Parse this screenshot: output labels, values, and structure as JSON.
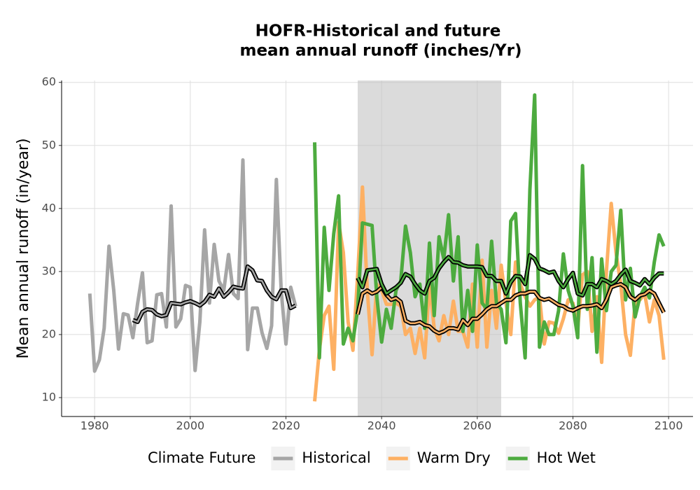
{
  "chart_data": {
    "type": "line",
    "title": [
      "HOFR-Historical and future",
      "mean annual runoff (inches/Yr)"
    ],
    "y_label": "Mean annual runoff (in/year)",
    "legend_title": "Climate Future",
    "xlim": [
      1973.1,
      2105.1
    ],
    "ylim": [
      7,
      60.3
    ],
    "xticks": [
      1980,
      2000,
      2020,
      2040,
      2060,
      2080,
      2100
    ],
    "yticks": [
      10,
      20,
      30,
      40,
      50,
      60
    ],
    "grid": true,
    "shade": [
      2035,
      2065
    ],
    "series": [
      {
        "name": "Historical",
        "color": "#a6a6a6",
        "x": [
          1979,
          1980,
          1981,
          1982,
          1983,
          1984,
          1985,
          1986,
          1987,
          1988,
          1989,
          1990,
          1991,
          1992,
          1993,
          1994,
          1995,
          1996,
          1997,
          1998,
          1999,
          2000,
          2001,
          2002,
          2003,
          2004,
          2005,
          2006,
          2007,
          2008,
          2009,
          2010,
          2011,
          2012,
          2013,
          2014,
          2015,
          2016,
          2017,
          2018,
          2019,
          2020,
          2021,
          2022
        ],
        "values": [
          26.5,
          14.2,
          16,
          21,
          34,
          27,
          17.7,
          23.3,
          23.1,
          19.5,
          25,
          29.8,
          18.7,
          19,
          26.3,
          26.5,
          21.2,
          40.4,
          21.2,
          22.5,
          27.8,
          27.5,
          14.3,
          22,
          36.6,
          25,
          34.3,
          28.5,
          27,
          32.7,
          26.5,
          25.7,
          47.7,
          17.6,
          24.2,
          24.2,
          20.3,
          17.8,
          21.4,
          44.6,
          27,
          18.5,
          27.5,
          24.5
        ],
        "smooth_x": [
          1988,
          1989,
          1990,
          1991,
          1992,
          1993,
          1994,
          1995,
          1996,
          1997,
          1998,
          1999,
          2000,
          2001,
          2002,
          2003,
          2004,
          2005,
          2006,
          2007,
          2008,
          2009,
          2010,
          2011,
          2012,
          2013,
          2014,
          2015,
          2016,
          2017,
          2018,
          2019,
          2020,
          2021,
          2022
        ],
        "smooth_values": [
          22.3,
          22,
          23.6,
          24,
          23.9,
          23.2,
          22.9,
          23.1,
          25,
          24.9,
          24.8,
          25.1,
          25.3,
          25,
          24.6,
          25.2,
          26.3,
          26,
          27.3,
          26,
          26.7,
          27.6,
          27.4,
          27.3,
          30.8,
          30.2,
          28.6,
          28.5,
          27,
          26,
          25.6,
          27,
          27,
          24.2,
          24.6
        ]
      },
      {
        "name": "Warm Dry",
        "color": "#fdb063",
        "x": [
          2026,
          2027,
          2028,
          2029,
          2030,
          2031,
          2032,
          2033,
          2034,
          2035,
          2036,
          2037,
          2038,
          2039,
          2040,
          2041,
          2042,
          2043,
          2044,
          2045,
          2046,
          2047,
          2048,
          2049,
          2050,
          2051,
          2052,
          2053,
          2054,
          2055,
          2056,
          2057,
          2058,
          2059,
          2060,
          2061,
          2062,
          2063,
          2064,
          2065,
          2066,
          2067,
          2068,
          2069,
          2070,
          2071,
          2072,
          2073,
          2074,
          2075,
          2076,
          2077,
          2078,
          2079,
          2080,
          2081,
          2082,
          2083,
          2084,
          2085,
          2086,
          2087,
          2088,
          2089,
          2090,
          2091,
          2092,
          2093,
          2094,
          2095,
          2096,
          2097,
          2098,
          2099
        ],
        "values": [
          9.4,
          17.6,
          23,
          24.5,
          14.5,
          37.8,
          33,
          22,
          17.5,
          29.5,
          43.4,
          27,
          16.8,
          28,
          27,
          24.8,
          24.8,
          25,
          24.5,
          20,
          21,
          17,
          21,
          16.3,
          28,
          21,
          19,
          23,
          20,
          25.3,
          20.5,
          20.5,
          18,
          28,
          18,
          31.8,
          18,
          27,
          21,
          31,
          25,
          20,
          31.5,
          28,
          26,
          24.5,
          25.5,
          26,
          18.5,
          22,
          21.8,
          20.2,
          22.5,
          25.5,
          25,
          21,
          29.5,
          30,
          20.5,
          26,
          15.6,
          30,
          40.8,
          33,
          28,
          20,
          16.7,
          25,
          25.5,
          26.5,
          22,
          25.5,
          23,
          16
        ],
        "smooth_x": [
          2035,
          2036,
          2037,
          2038,
          2039,
          2040,
          2041,
          2042,
          2043,
          2044,
          2045,
          2046,
          2047,
          2048,
          2049,
          2050,
          2051,
          2052,
          2053,
          2054,
          2055,
          2056,
          2057,
          2058,
          2059,
          2060,
          2061,
          2062,
          2063,
          2064,
          2065,
          2066,
          2067,
          2068,
          2069,
          2070,
          2071,
          2072,
          2073,
          2074,
          2075,
          2076,
          2077,
          2078,
          2079,
          2080,
          2081,
          2082,
          2083,
          2084,
          2085,
          2086,
          2087,
          2088,
          2089,
          2090,
          2091,
          2092,
          2093,
          2094,
          2095,
          2096,
          2097,
          2098,
          2099
        ],
        "smooth_values": [
          23.2,
          26.5,
          27,
          26.5,
          26.8,
          27.5,
          26.3,
          25.5,
          25.8,
          25.2,
          22.2,
          21.8,
          21.8,
          22,
          21.5,
          21.3,
          20.6,
          20.2,
          20.5,
          21,
          21,
          20.8,
          22.3,
          21.5,
          22.5,
          22.5,
          23.2,
          24,
          24.5,
          24.5,
          25,
          25.5,
          25.5,
          26.2,
          26.5,
          26.5,
          26.8,
          26.8,
          25.8,
          25.5,
          25.7,
          25.2,
          24.7,
          24.5,
          24,
          23.8,
          24.2,
          24.5,
          24.5,
          24.6,
          24.8,
          24.2,
          25.5,
          27.5,
          27.8,
          28,
          27.5,
          26,
          25.5,
          26.2,
          26.4,
          27,
          26.5,
          25,
          23.5
        ]
      },
      {
        "name": "Hot Wet",
        "color": "#4dab3f",
        "x": [
          2026,
          2027,
          2028,
          2029,
          2030,
          2031,
          2032,
          2033,
          2034,
          2035,
          2036,
          2037,
          2038,
          2039,
          2040,
          2041,
          2042,
          2043,
          2044,
          2045,
          2046,
          2047,
          2048,
          2049,
          2050,
          2051,
          2052,
          2053,
          2054,
          2055,
          2056,
          2057,
          2058,
          2059,
          2060,
          2061,
          2062,
          2063,
          2064,
          2065,
          2066,
          2067,
          2068,
          2069,
          2070,
          2071,
          2072,
          2073,
          2074,
          2075,
          2076,
          2077,
          2078,
          2079,
          2080,
          2081,
          2082,
          2083,
          2084,
          2085,
          2086,
          2087,
          2088,
          2089,
          2090,
          2091,
          2092,
          2093,
          2094,
          2095,
          2096,
          2097,
          2098,
          2099
        ],
        "values": [
          50.5,
          16.3,
          37,
          27,
          36,
          42,
          18.5,
          21,
          19,
          24,
          37.7,
          37.5,
          37.3,
          26,
          18.8,
          24,
          21,
          27,
          28.5,
          37.2,
          33,
          26,
          28,
          21,
          34.5,
          23,
          35.5,
          32,
          39,
          28.5,
          35.5,
          20.5,
          27,
          20.5,
          34.2,
          25,
          24,
          34.8,
          25,
          24,
          18.7,
          38,
          39.2,
          25,
          16.3,
          43,
          58,
          18,
          22,
          20,
          20,
          23.8,
          32.8,
          27,
          24.5,
          19.5,
          46.8,
          24,
          32.2,
          17.2,
          32,
          23.8,
          30,
          31,
          39.7,
          25.5,
          30.5,
          22.8,
          26,
          27.5,
          25.8,
          31.5,
          35.8,
          34
        ],
        "smooth_x": [
          2035,
          2036,
          2037,
          2038,
          2039,
          2040,
          2041,
          2042,
          2043,
          2044,
          2045,
          2046,
          2047,
          2048,
          2049,
          2050,
          2051,
          2052,
          2053,
          2054,
          2055,
          2056,
          2057,
          2058,
          2059,
          2060,
          2061,
          2062,
          2063,
          2064,
          2065,
          2066,
          2067,
          2068,
          2069,
          2070,
          2071,
          2072,
          2073,
          2074,
          2075,
          2076,
          2077,
          2078,
          2079,
          2080,
          2081,
          2082,
          2083,
          2084,
          2085,
          2086,
          2087,
          2088,
          2089,
          2090,
          2091,
          2092,
          2093,
          2094,
          2095,
          2096,
          2097,
          2098,
          2099
        ],
        "smooth_values": [
          29,
          27.5,
          30.2,
          30.3,
          30.4,
          28,
          26.5,
          27,
          27.5,
          28.2,
          29.6,
          29.2,
          28,
          27,
          26.5,
          28.5,
          29,
          30.5,
          31.5,
          32.3,
          31.5,
          31.4,
          31,
          30.8,
          30.8,
          30.8,
          30.7,
          29.3,
          29.3,
          28.5,
          28.5,
          26.5,
          28.3,
          29.3,
          29.2,
          28,
          32.6,
          32,
          30.5,
          30.2,
          29.8,
          30,
          28.5,
          27.5,
          28.8,
          29.8,
          26.5,
          26.2,
          28,
          28,
          27.5,
          28.8,
          28.5,
          28,
          28.5,
          29.5,
          30.3,
          28.5,
          28.2,
          27.8,
          28.8,
          28,
          29,
          29.7,
          29.7
        ]
      }
    ]
  }
}
